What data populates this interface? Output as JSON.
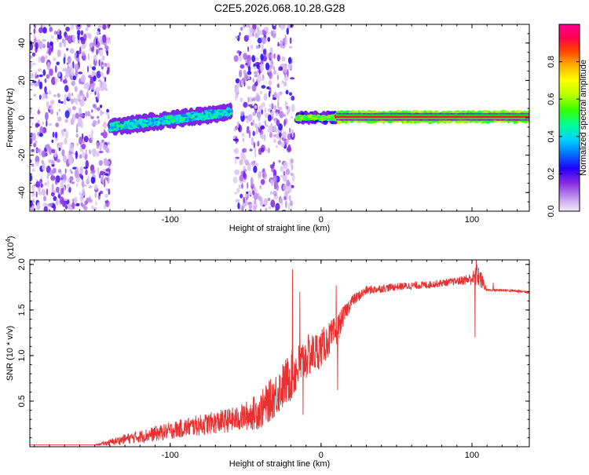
{
  "page_title": "C2E5.2026.068.10.28.G28",
  "chart_data": [
    {
      "type": "heatmap",
      "xlabel": "Height of straight line (km)",
      "ylabel": "Frequency (Hz)",
      "xlim": [
        -193,
        138
      ],
      "ylim": [
        -50,
        50
      ],
      "xticks": [
        -100,
        0,
        100
      ],
      "yticks": [
        -40,
        -20,
        0,
        20,
        40
      ],
      "colorbar": {
        "label": "Normalized spectral amplitude",
        "range": [
          0,
          1
        ],
        "ticks": [
          "0.0",
          "0.2",
          "0.4",
          "0.6",
          "0.8"
        ],
        "tick_values": [
          0.0,
          0.2,
          0.4,
          0.6,
          0.8
        ]
      },
      "regions": [
        {
          "x0": -193,
          "x1": -140,
          "kind": "noise",
          "amplitude": 0.1
        },
        {
          "x0": -140,
          "x1": -60,
          "kind": "band",
          "f_start": -5,
          "f_end": 3,
          "width": 6,
          "amplitude": 0.4
        },
        {
          "x0": -57,
          "x1": -18,
          "kind": "noise",
          "amplitude": 0.1
        },
        {
          "x0": -16,
          "x1": 10,
          "kind": "band",
          "f_start": 0,
          "f_end": 0,
          "width": 3,
          "amplitude": 0.55
        },
        {
          "x0": 10,
          "x1": 138,
          "kind": "carrier",
          "f_start": 0.5,
          "f_end": 0.5,
          "width": 3,
          "amplitude": 0.95
        }
      ]
    },
    {
      "type": "line",
      "xlabel": "Height of straight line (km)",
      "ylabel": "SNR (10 * v/v)",
      "y_multiplier": "(x10",
      "y_multiplier_exp": "4",
      "y_multiplier_close": ")",
      "xlim": [
        -193,
        138
      ],
      "ylim": [
        0,
        2.05
      ],
      "xticks": [
        -100,
        0,
        100
      ],
      "yticks": [
        0.5,
        1.0,
        1.5,
        2.0
      ],
      "ytick_labels": [
        "0.5",
        "1.0",
        "1.5",
        "2.0"
      ],
      "color": "#e83030",
      "x": [
        -193,
        -150,
        -140,
        -130,
        -110,
        -90,
        -70,
        -55,
        -40,
        -30,
        -20,
        -10,
        0,
        10,
        15,
        20,
        30,
        50,
        70,
        90,
        100,
        104,
        110,
        120,
        138
      ],
      "y": [
        0.02,
        0.02,
        0.05,
        0.09,
        0.15,
        0.22,
        0.28,
        0.32,
        0.42,
        0.6,
        0.8,
        1.0,
        1.1,
        1.28,
        1.45,
        1.6,
        1.72,
        1.76,
        1.78,
        1.82,
        1.85,
        1.9,
        1.72,
        1.72,
        1.7
      ],
      "noise": [
        0,
        0,
        0.05,
        0.08,
        0.12,
        0.15,
        0.18,
        0.2,
        0.3,
        0.35,
        0.4,
        0.35,
        0.3,
        0.25,
        0.15,
        0.1,
        0.07,
        0.06,
        0.06,
        0.06,
        0.1,
        0.2,
        0.02,
        0.02,
        0.02
      ],
      "spikes": [
        [
          -19,
          1.95
        ],
        [
          -14,
          1.7
        ],
        [
          -12,
          0.35
        ],
        [
          10,
          1.77
        ],
        [
          11,
          0.62
        ],
        [
          102,
          1.2
        ],
        [
          103,
          2.05
        ],
        [
          114,
          1.8
        ]
      ]
    }
  ]
}
